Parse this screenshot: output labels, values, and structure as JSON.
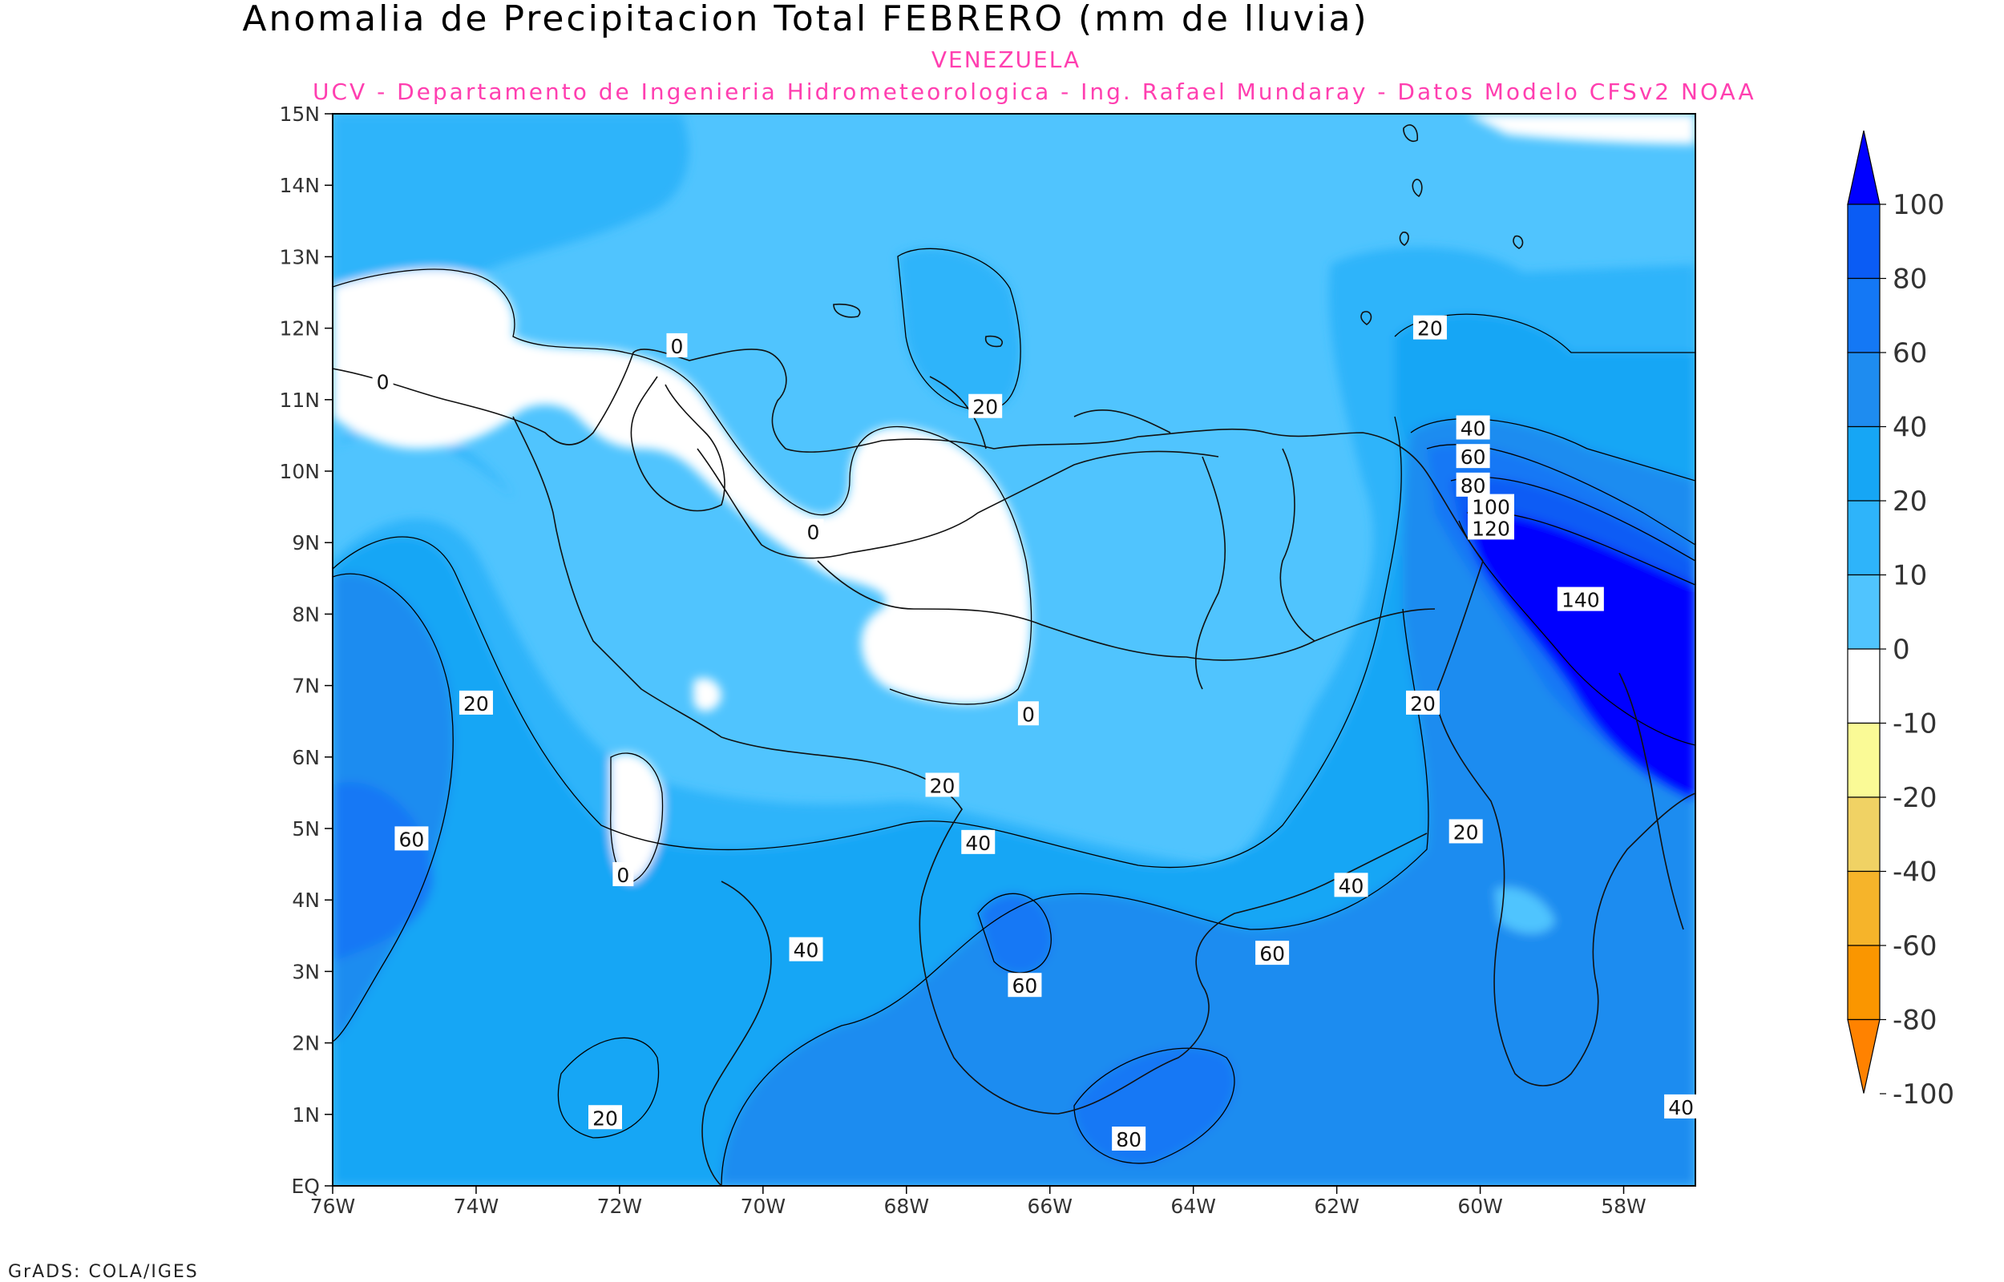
{
  "title": "Anomalia de Precipitacion Total FEBRERO (mm de lluvia)",
  "region": "VENEZUELA",
  "credit": "UCV - Departamento de Ingenieria Hidrometeorologica - Ing. Rafael Mundaray - Datos Modelo CFSv2 NOAA",
  "footer": "GrADS: COLA/IGES",
  "axes": {
    "lat_labels": [
      "15N",
      "14N",
      "13N",
      "12N",
      "11N",
      "10N",
      "9N",
      "8N",
      "7N",
      "6N",
      "5N",
      "4N",
      "3N",
      "2N",
      "1N",
      "EQ"
    ],
    "lon_labels": [
      "76W",
      "74W",
      "72W",
      "70W",
      "68W",
      "66W",
      "64W",
      "62W",
      "60W",
      "58W"
    ]
  },
  "legend": {
    "labels": [
      "100",
      "80",
      "60",
      "40",
      "20",
      "10",
      "0",
      "-10",
      "-20",
      "-40",
      "-60",
      "-80",
      "-100"
    ],
    "colors_top_to_bottom": [
      "#0000ff",
      "#0a5cf5",
      "#1478f5",
      "#1e8cf0",
      "#16a6f5",
      "#2eb4fa",
      "#50c4fe",
      "#ffffff",
      "#fafa96",
      "#f0d264",
      "#f6b42a",
      "#fa9600",
      "#ff8200"
    ]
  },
  "contour_labels": [
    {
      "text": "0",
      "lon": -71.2,
      "lat": 11.75
    },
    {
      "text": "0",
      "lon": -75.3,
      "lat": 11.25
    },
    {
      "text": "0",
      "lon": -69.3,
      "lat": 9.15
    },
    {
      "text": "0",
      "lon": -66.3,
      "lat": 6.6
    },
    {
      "text": "0",
      "lon": -71.95,
      "lat": 4.35
    },
    {
      "text": "20",
      "lon": -66.9,
      "lat": 10.9
    },
    {
      "text": "20",
      "lon": -60.7,
      "lat": 12.0
    },
    {
      "text": "20",
      "lon": -74.0,
      "lat": 6.75
    },
    {
      "text": "20",
      "lon": -67.5,
      "lat": 5.6
    },
    {
      "text": "20",
      "lon": -60.8,
      "lat": 6.75
    },
    {
      "text": "20",
      "lon": -60.2,
      "lat": 4.95
    },
    {
      "text": "20",
      "lon": -72.2,
      "lat": 0.95
    },
    {
      "text": "40",
      "lon": -60.1,
      "lat": 10.6
    },
    {
      "text": "60",
      "lon": -60.1,
      "lat": 10.2
    },
    {
      "text": "80",
      "lon": -60.1,
      "lat": 9.8
    },
    {
      "text": "100",
      "lon": -59.85,
      "lat": 9.5
    },
    {
      "text": "120",
      "lon": -59.85,
      "lat": 9.2
    },
    {
      "text": "140",
      "lon": -58.6,
      "lat": 8.2
    },
    {
      "text": "40",
      "lon": -67.0,
      "lat": 4.8
    },
    {
      "text": "40",
      "lon": -69.4,
      "lat": 3.3
    },
    {
      "text": "40",
      "lon": -61.8,
      "lat": 4.2
    },
    {
      "text": "40",
      "lon": -57.2,
      "lat": 1.1
    },
    {
      "text": "60",
      "lon": -74.9,
      "lat": 4.85
    },
    {
      "text": "60",
      "lon": -66.35,
      "lat": 2.8
    },
    {
      "text": "60",
      "lon": -62.9,
      "lat": 3.25
    },
    {
      "text": "80",
      "lon": -64.9,
      "lat": 0.65
    }
  ]
}
